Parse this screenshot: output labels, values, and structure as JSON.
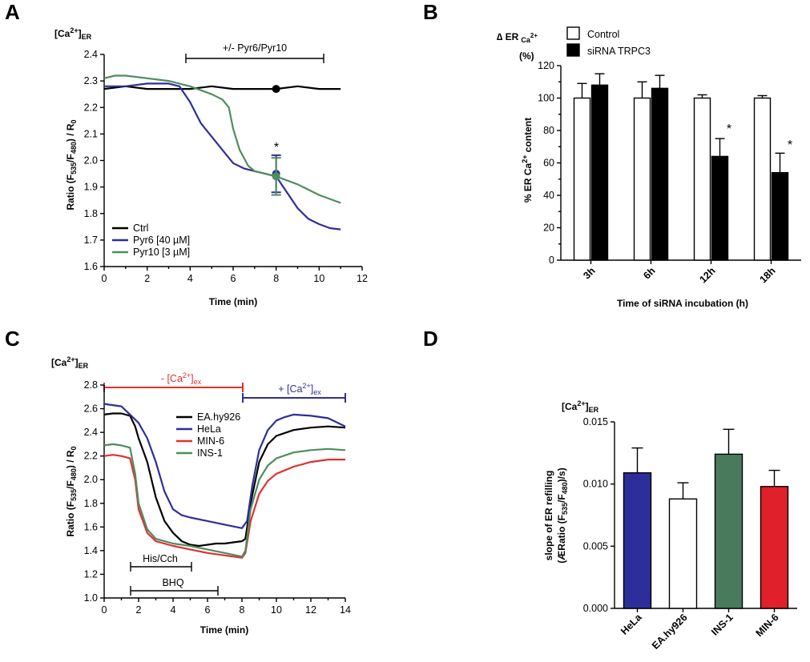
{
  "panels": {
    "A": {
      "letter": "A",
      "sub": {
        "base": "[Ca",
        "sup": "2+",
        "close": "]",
        "sub": "ER"
      },
      "ylabel": {
        "p1": "Ratio (F",
        "s1": "535",
        "p2": "/F",
        "s2": "480",
        "p3": ") / R",
        "s3": "0"
      },
      "xlabel": "Time (min)",
      "bar_label": "+/- Pyr6/Pyr10",
      "star": "*"
    },
    "B": {
      "letter": "B",
      "header": {
        "p1": "∆ ER",
        "s1": "Ca",
        "s2": "2+",
        "line2": "(%)"
      },
      "ylabel": {
        "p1": "% ER Ca",
        "s1": "2+",
        "p2": " content"
      },
      "xlabel": "Time of siRNA incubation (h)",
      "star1": "*",
      "star2": "*"
    },
    "C": {
      "letter": "C",
      "sub": {
        "base": "[Ca",
        "sup": "2+",
        "close": "]",
        "sub": "ER"
      },
      "ylabel": {
        "p1": "Ratio (F",
        "s1": "535",
        "p2": "/F",
        "s2": "480",
        "p3": ") / R",
        "s3": "0"
      },
      "xlabel": "Time (min)",
      "minus_label": {
        "p1": "- [Ca",
        "sup": "2+",
        "p2": "]",
        "sub": "ex"
      },
      "plus_label": {
        "p1": "+ [Ca",
        "sup": "2+",
        "p2": "]",
        "sub": "ex"
      },
      "his_label": "His/Cch",
      "bhq_label": "BHQ"
    },
    "D": {
      "letter": "D",
      "sub": {
        "base": "[Ca",
        "sup": "2+",
        "close": "]",
        "sub": "ER"
      },
      "ylabel": {
        "line1": "slope of ER refilling",
        "p1": "(ÆRatio (F",
        "s1": "535",
        "p2": "/F",
        "s2": "480",
        "p3": ")/s)"
      }
    }
  },
  "chart_data": [
    {
      "panel": "A",
      "type": "line",
      "xlim": [
        0,
        12
      ],
      "ylim": [
        1.6,
        2.4
      ],
      "xticks": [
        "0",
        "2",
        "4",
        "6",
        "8",
        "10",
        "12"
      ],
      "yticks": [
        "1.6",
        "1.7",
        "1.8",
        "1.9",
        "2.0",
        "2.1",
        "2.2",
        "2.3",
        "2.4"
      ],
      "xlabel": "Time (min)",
      "legend_position": "bottom-left",
      "series": [
        {
          "name": "Ctrl",
          "color": "#000000",
          "x": [
            0,
            1,
            2,
            3,
            4,
            5,
            6,
            7,
            8,
            9,
            10,
            11
          ],
          "y": [
            2.27,
            2.28,
            2.27,
            2.27,
            2.27,
            2.28,
            2.27,
            2.27,
            2.27,
            2.28,
            2.27,
            2.27
          ],
          "marker": {
            "x": 8,
            "y": 2.27
          }
        },
        {
          "name": "Pyr6 [40 µM]",
          "color": "#2e2e9a",
          "x": [
            0,
            1,
            2,
            3,
            3.5,
            4,
            4.5,
            5,
            5.5,
            6,
            6.5,
            7,
            7.5,
            8,
            8.5,
            9,
            9.5,
            10,
            10.5,
            11
          ],
          "y": [
            2.28,
            2.28,
            2.29,
            2.29,
            2.28,
            2.22,
            2.14,
            2.09,
            2.04,
            1.99,
            1.97,
            1.96,
            1.95,
            1.94,
            1.88,
            1.82,
            1.78,
            1.76,
            1.745,
            1.74
          ],
          "marker": {
            "x": 8,
            "y": 1.95,
            "err": 0.07
          }
        },
        {
          "name": "Pyr10 [3 µM]",
          "color": "#4f8c60",
          "x": [
            0,
            0.5,
            1,
            2,
            3,
            4,
            5,
            5.5,
            5.8,
            6,
            6.3,
            6.7,
            7,
            7.5,
            8,
            9,
            10,
            11
          ],
          "y": [
            2.31,
            2.32,
            2.32,
            2.31,
            2.3,
            2.28,
            2.25,
            2.23,
            2.2,
            2.12,
            2.04,
            1.98,
            1.96,
            1.95,
            1.94,
            1.91,
            1.87,
            1.84
          ],
          "marker": {
            "x": 8,
            "y": 1.94,
            "err": 0.07
          }
        }
      ],
      "annotations": [
        "+/- Pyr6/Pyr10",
        "*"
      ]
    },
    {
      "panel": "B",
      "type": "bar",
      "categories": [
        "3h",
        "6h",
        "12h",
        "18h"
      ],
      "xlabel": "Time of siRNA incubation (h)",
      "ylim": [
        0,
        120
      ],
      "yticks": [
        "0",
        "20",
        "40",
        "60",
        "80",
        "100",
        "120"
      ],
      "legend_position": "top",
      "series": [
        {
          "name": "Control",
          "color": "#ffffff",
          "values": [
            100,
            100,
            100,
            100
          ],
          "errors": [
            9,
            10,
            2,
            1.5
          ]
        },
        {
          "name": "siRNA TRPC3",
          "color": "#000000",
          "values": [
            108,
            106,
            64,
            54
          ],
          "errors": [
            7,
            8,
            11,
            12
          ]
        }
      ]
    },
    {
      "panel": "C",
      "type": "line",
      "xlim": [
        0,
        14
      ],
      "ylim": [
        1.0,
        2.8
      ],
      "xticks": [
        "0",
        "2",
        "4",
        "6",
        "8",
        "10",
        "12",
        "14"
      ],
      "yticks": [
        "1.0",
        "1.2",
        "1.4",
        "1.6",
        "1.8",
        "2.0",
        "2.2",
        "2.4",
        "2.6",
        "2.8"
      ],
      "xlabel": "Time (min)",
      "legend_position": "top-center",
      "series": [
        {
          "name": "EA.hy926",
          "color": "#000000",
          "x": [
            0,
            0.5,
            1,
            1.5,
            1.8,
            2,
            2.5,
            3,
            3.5,
            4,
            4.5,
            5,
            5.5,
            6,
            6.5,
            7,
            7.5,
            8,
            8.2,
            8.5,
            9,
            9.5,
            10,
            11,
            12,
            13,
            14
          ],
          "y": [
            2.55,
            2.56,
            2.56,
            2.54,
            2.45,
            2.35,
            2.15,
            1.85,
            1.65,
            1.55,
            1.48,
            1.45,
            1.44,
            1.45,
            1.46,
            1.46,
            1.47,
            1.48,
            1.5,
            1.8,
            2.15,
            2.3,
            2.37,
            2.42,
            2.44,
            2.45,
            2.44
          ]
        },
        {
          "name": "HeLa",
          "color": "#2e2e9a",
          "x": [
            0,
            0.5,
            1,
            1.5,
            2,
            2.5,
            3,
            3.5,
            4,
            4.5,
            5,
            6,
            7,
            8,
            8.3,
            8.6,
            9,
            9.5,
            10,
            10.5,
            11,
            12,
            13,
            14
          ],
          "y": [
            2.64,
            2.63,
            2.62,
            2.55,
            2.48,
            2.35,
            2.15,
            1.9,
            1.75,
            1.7,
            1.68,
            1.65,
            1.62,
            1.59,
            1.65,
            1.95,
            2.25,
            2.42,
            2.5,
            2.53,
            2.55,
            2.54,
            2.52,
            2.45
          ]
        },
        {
          "name": "MIN-6",
          "color": "#e03030",
          "x": [
            0,
            0.5,
            1,
            1.5,
            1.8,
            2,
            2.5,
            3,
            4,
            5,
            6,
            7,
            8,
            8.2,
            8.5,
            9,
            9.5,
            10,
            11,
            12,
            13,
            14
          ],
          "y": [
            2.2,
            2.21,
            2.2,
            2.18,
            2.0,
            1.75,
            1.55,
            1.48,
            1.44,
            1.41,
            1.38,
            1.36,
            1.34,
            1.38,
            1.65,
            1.88,
            1.99,
            2.05,
            2.11,
            2.15,
            2.17,
            2.17
          ]
        },
        {
          "name": "INS-1",
          "color": "#4f8c60",
          "x": [
            0,
            0.5,
            1,
            1.5,
            1.8,
            2,
            2.5,
            3,
            4,
            5,
            6,
            7,
            8,
            8.2,
            8.5,
            9,
            9.5,
            10,
            11,
            12,
            13,
            14
          ],
          "y": [
            2.29,
            2.3,
            2.29,
            2.27,
            2.05,
            1.8,
            1.58,
            1.5,
            1.46,
            1.44,
            1.41,
            1.38,
            1.35,
            1.4,
            1.75,
            2.0,
            2.12,
            2.18,
            2.23,
            2.25,
            2.26,
            2.25
          ]
        }
      ],
      "annotations": [
        "- [Ca2+]ex",
        "+ [Ca2+]ex",
        "His/Cch",
        "BHQ"
      ]
    },
    {
      "panel": "D",
      "type": "bar",
      "categories": [
        "HeLa",
        "EA.hy926",
        "INS-1",
        "MIN-6"
      ],
      "colors": [
        "#2e2e9a",
        "#ffffff",
        "#4a7a5c",
        "#e0202a"
      ],
      "values": [
        0.0109,
        0.0088,
        0.0124,
        0.0098
      ],
      "errors": [
        0.002,
        0.0013,
        0.002,
        0.0013
      ],
      "ylim": [
        0,
        0.015
      ],
      "yticks": [
        "0.000",
        "0.005",
        "0.010",
        "0.015"
      ]
    }
  ]
}
